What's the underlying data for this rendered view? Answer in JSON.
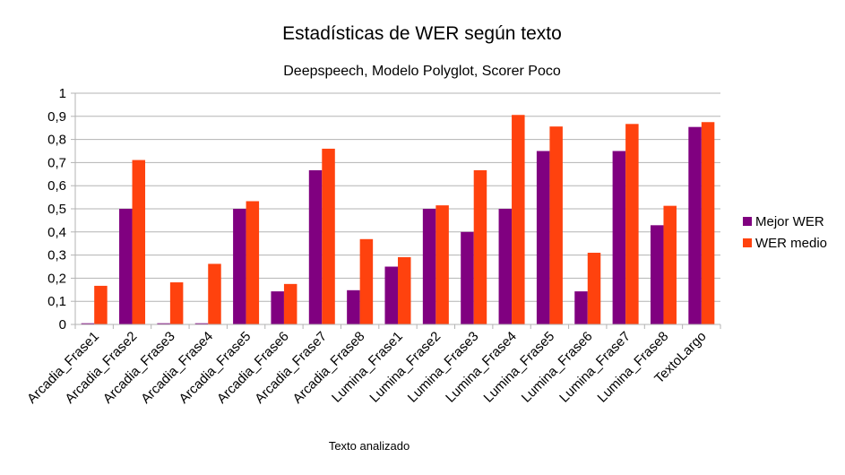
{
  "chart_data": {
    "type": "bar",
    "title": "Estadísticas de WER según texto",
    "subtitle": "Deepspeech, Modelo Polyglot, Scorer Poco",
    "xlabel": "Texto analizado",
    "ylabel": "",
    "ylim": [
      0,
      1
    ],
    "yticks": [
      0,
      0.1,
      0.2,
      0.3,
      0.4,
      0.5,
      0.6,
      0.7,
      0.8,
      0.9,
      1
    ],
    "ytick_labels": [
      "0",
      "0,1",
      "0,2",
      "0,3",
      "0,4",
      "0,5",
      "0,6",
      "0,7",
      "0,8",
      "0,9",
      "1"
    ],
    "grid": true,
    "legend_position": "right",
    "categories": [
      "Arcadia_Frase1",
      "Arcadia_Frase2",
      "Arcadia_Frase3",
      "Arcadia_Frase4",
      "Arcadia_Frase5",
      "Arcadia_Frase6",
      "Arcadia_Frase7",
      "Arcadia_Frase8",
      "Lumina_Frase1",
      "Lumina_Frase2",
      "Lumina_Frase3",
      "Lumina_Frase4",
      "Lumina_Frase5",
      "Lumina_Frase6",
      "Lumina_Frase7",
      "Lumina_Frase8",
      "TextoLargo"
    ],
    "series": [
      {
        "name": "Mejor WER",
        "color": "#800080",
        "values": [
          0.005,
          0.5,
          0.005,
          0.005,
          0.5,
          0.143,
          0.667,
          0.148,
          0.25,
          0.5,
          0.4,
          0.5,
          0.75,
          0.143,
          0.75,
          0.429,
          0.854
        ]
      },
      {
        "name": "WER medio",
        "color": "#ff420e",
        "values": [
          0.167,
          0.711,
          0.182,
          0.262,
          0.533,
          0.175,
          0.76,
          0.369,
          0.291,
          0.515,
          0.667,
          0.906,
          0.856,
          0.31,
          0.867,
          0.513,
          0.875
        ]
      }
    ]
  }
}
